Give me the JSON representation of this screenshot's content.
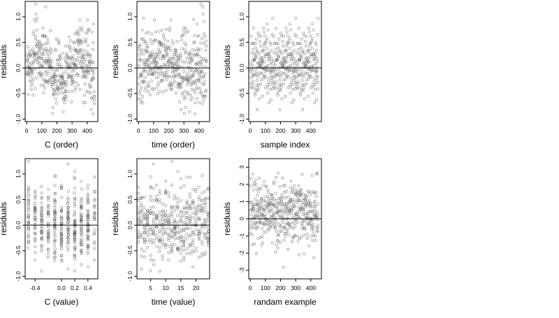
{
  "chart_data": [
    {
      "type": "scatter",
      "xlabel": "C (order)",
      "ylabel": "residuals",
      "xlim": [
        -10,
        470
      ],
      "ylim": [
        -1.05,
        1.3
      ],
      "xticks": [
        0,
        100,
        200,
        300,
        400
      ],
      "xtick_labels": [
        "0",
        "100",
        "200",
        "300",
        "400"
      ],
      "yticks": [
        -1,
        -0.5,
        0,
        0.5,
        1
      ],
      "ytick_labels": [
        "-1.0",
        "-0.5",
        "0.0",
        "0.5",
        "1.0"
      ],
      "hline": 0,
      "n_points": 450,
      "y_spread_est": 0.4
    },
    {
      "type": "scatter",
      "xlabel": "time (order)",
      "ylabel": "residuals",
      "xlim": [
        -10,
        470
      ],
      "ylim": [
        -1.05,
        1.3
      ],
      "xticks": [
        0,
        100,
        200,
        300,
        400
      ],
      "xtick_labels": [
        "0",
        "100",
        "200",
        "300",
        "400"
      ],
      "yticks": [
        -1,
        -0.5,
        0,
        0.5,
        1
      ],
      "ytick_labels": [
        "-1.0",
        "-0.5",
        "0.0",
        "0.5",
        "1.0"
      ],
      "hline": 0,
      "n_points": 450,
      "y_spread_est": 0.4
    },
    {
      "type": "scatter",
      "xlabel": "sample index",
      "ylabel": "residuals",
      "xlim": [
        -10,
        470
      ],
      "ylim": [
        -1.05,
        1.3
      ],
      "xticks": [
        0,
        100,
        200,
        300,
        400
      ],
      "xtick_labels": [
        "0",
        "100",
        "200",
        "300",
        "400"
      ],
      "yticks": [
        -1,
        -0.5,
        0,
        0.5,
        1
      ],
      "ytick_labels": [
        "-1.0",
        "-0.5",
        "0.0",
        "0.5",
        "1.0"
      ],
      "hline": 0,
      "n_points": 450,
      "y_spread_est": 0.4
    },
    {
      "type": "scatter",
      "xlabel": "C (value)",
      "ylabel": "residuals",
      "xlim": [
        -0.55,
        0.55
      ],
      "ylim": [
        -1.05,
        1.3
      ],
      "xticks": [
        -0.4,
        0.0,
        0.2,
        0.4
      ],
      "xtick_labels": [
        "-0.4",
        "0.0",
        "0.2",
        "0.4"
      ],
      "yticks": [
        -1,
        -0.5,
        0,
        0.5,
        1
      ],
      "ytick_labels": [
        "-1.0",
        "-0.5",
        "0.0",
        "0.5",
        "1.0"
      ],
      "hline": 0,
      "n_points": 450,
      "y_spread_est": 0.4,
      "x_levels": [
        -0.5,
        -0.4,
        -0.3,
        -0.2,
        -0.1,
        0.0,
        0.1,
        0.2,
        0.3,
        0.4,
        0.5
      ]
    },
    {
      "type": "scatter",
      "xlabel": "time (value)",
      "ylabel": "residuals",
      "xlim": [
        0.5,
        24.5
      ],
      "ylim": [
        -1.05,
        1.3
      ],
      "xticks": [
        5,
        10,
        15,
        20
      ],
      "xtick_labels": [
        "5",
        "10",
        "15",
        "20"
      ],
      "yticks": [
        -1,
        -0.5,
        0,
        0.5,
        1
      ],
      "ytick_labels": [
        "-1.0",
        "-0.5",
        "0.0",
        "0.5",
        "1.0"
      ],
      "hline": 0,
      "n_points": 450,
      "y_spread_est": 0.4,
      "x_levels": [
        1,
        2,
        3,
        4,
        5,
        6,
        7,
        8,
        9,
        10,
        11,
        12,
        13,
        14,
        15,
        16,
        17,
        18,
        19,
        20,
        21,
        22,
        23,
        24
      ]
    },
    {
      "type": "scatter",
      "xlabel": "randam example",
      "ylabel": "residuals",
      "xlim": [
        -10,
        470
      ],
      "ylim": [
        -3.5,
        3.5
      ],
      "xticks": [
        0,
        100,
        200,
        300,
        400
      ],
      "xtick_labels": [
        "0",
        "100",
        "200",
        "300",
        "400"
      ],
      "yticks": [
        -3,
        -2,
        -1,
        0,
        1,
        2,
        3
      ],
      "ytick_labels": [
        "-3",
        "-2",
        "-1",
        "0",
        "1",
        "2",
        "3"
      ],
      "hline": 0,
      "n_points": 450,
      "y_spread_est": 1.0
    }
  ]
}
